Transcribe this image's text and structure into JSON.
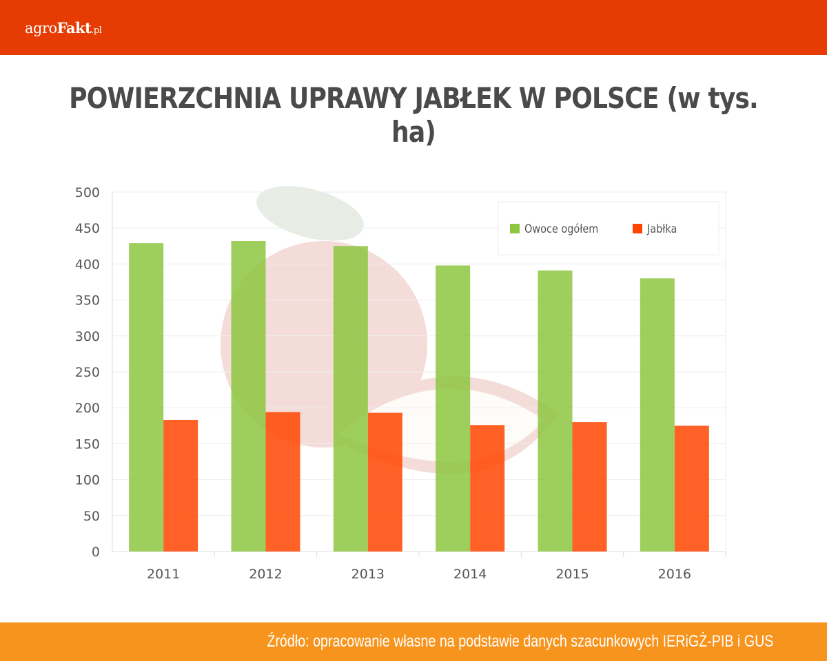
{
  "header": {
    "logo_text": "agroFakt.pl",
    "logo_parts": [
      "agro",
      "Fakt",
      ".pl"
    ]
  },
  "footer": {
    "source": "Źródło: opracowanie własne na podstawie danych szacunkowych IERiGŻ-PIB i GUS"
  },
  "chart_data": {
    "type": "bar",
    "title": "POWIERZCHNIA UPRAWY JABŁEK W POLSCE (w tys. ha)",
    "xlabel": "",
    "ylabel": "",
    "categories": [
      "2011",
      "2012",
      "2013",
      "2014",
      "2015",
      "2016"
    ],
    "series": [
      {
        "name": "Owoce ogółem",
        "color": "#8dc63f",
        "values": [
          429,
          432,
          425,
          398,
          391,
          380
        ]
      },
      {
        "name": "Jabłka",
        "color": "#ff4500",
        "values": [
          183,
          194,
          193,
          176,
          180,
          175
        ]
      }
    ],
    "ylim": [
      0,
      500
    ],
    "yticks": [
      0,
      50,
      100,
      150,
      200,
      250,
      300,
      350,
      400,
      450,
      500
    ],
    "grid": true,
    "legend": "top-right"
  }
}
